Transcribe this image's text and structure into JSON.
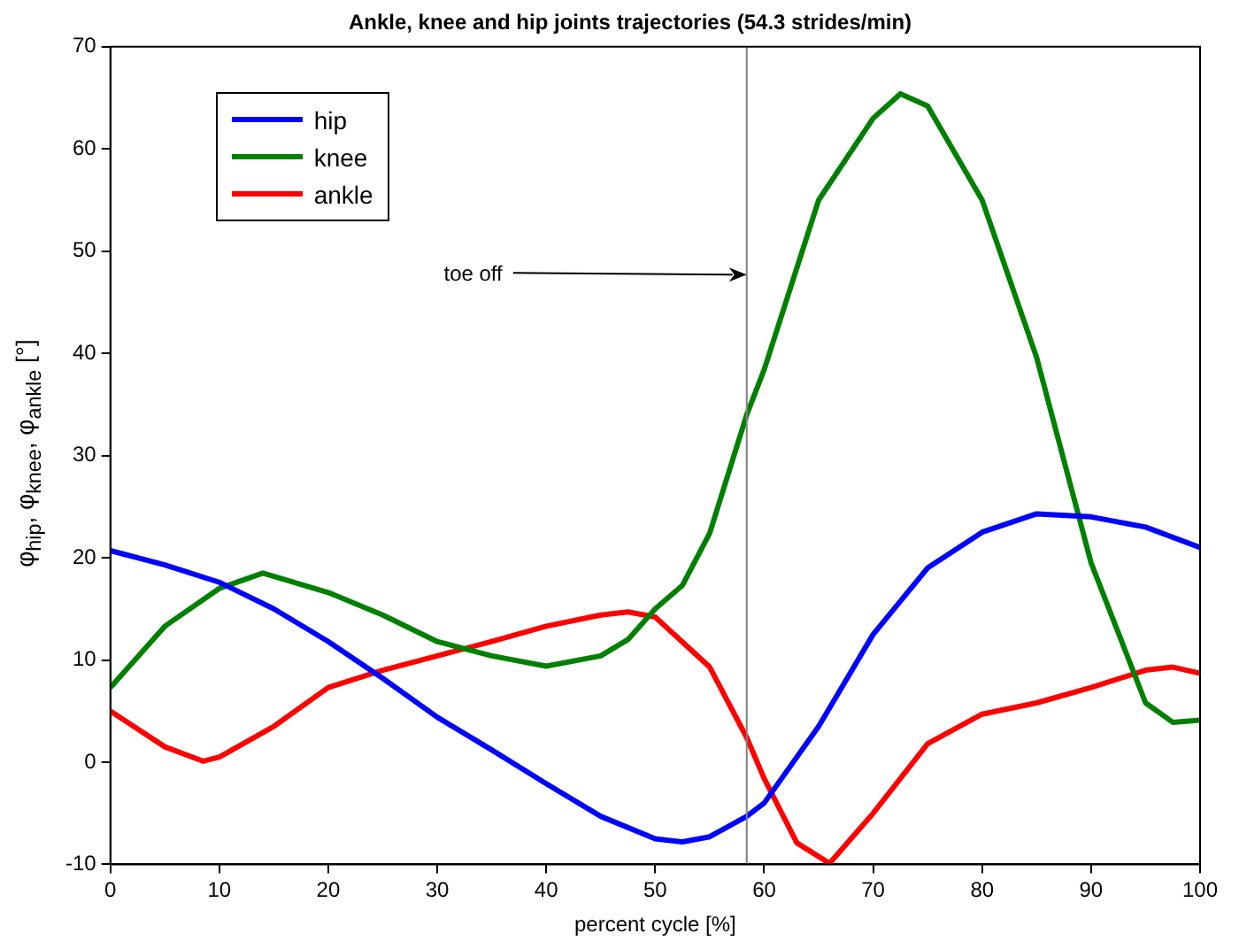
{
  "chart_data": {
    "type": "line",
    "title": "Ankle, knee and hip joints trajectories (54.3 strides/min)",
    "xlabel": "percent cycle [%]",
    "ylabel": "φ$_{hip}$, φ$_{knee}$, φ$_{ankle}$  [°]",
    "xlim": [
      0,
      100
    ],
    "xticks": [
      0,
      10,
      20,
      30,
      40,
      50,
      60,
      70,
      80,
      90,
      100
    ],
    "ylim": [
      -10,
      70
    ],
    "yticks": [
      -10,
      0,
      10,
      20,
      30,
      40,
      50,
      60,
      70
    ],
    "grid": false,
    "legend": "top left",
    "series": [
      {
        "name": "hip",
        "color": "#0000ff",
        "x": [
          0,
          5,
          10,
          15,
          20,
          25,
          30,
          35,
          40,
          45,
          50,
          52.5,
          55,
          58.4,
          60,
          65,
          70,
          75,
          80,
          85,
          90,
          95,
          100
        ],
        "values": [
          20.7,
          19.3,
          17.6,
          15,
          11.8,
          8.2,
          4.4,
          1.2,
          -2.1,
          -5.3,
          -7.5,
          -7.8,
          -7.3,
          -5.3,
          -4,
          3.5,
          12.5,
          19,
          22.5,
          24.3,
          24,
          23,
          21
        ]
      },
      {
        "name": "knee",
        "color": "#008000",
        "x": [
          0,
          5,
          10,
          14,
          20,
          25,
          30,
          35,
          40,
          45,
          47.5,
          50,
          52.5,
          55,
          58.4,
          60,
          65,
          70,
          72.5,
          75,
          80,
          85,
          90,
          95,
          97.5,
          100
        ],
        "values": [
          7.3,
          13.3,
          17,
          18.5,
          16.6,
          14.4,
          11.8,
          10.4,
          9.4,
          10.4,
          12,
          15,
          17.3,
          22.4,
          34,
          38.4,
          55,
          63,
          65.4,
          64.2,
          55,
          39.6,
          19.5,
          5.8,
          3.9,
          4.1
        ]
      },
      {
        "name": "ankle",
        "color": "#ff0000",
        "x": [
          0,
          5,
          8.5,
          10,
          15,
          20,
          25,
          30,
          35,
          40,
          45,
          47.5,
          50,
          55,
          58.4,
          60,
          63,
          66,
          70,
          75,
          80,
          85,
          90,
          95,
          97.5,
          100
        ],
        "values": [
          5,
          1.5,
          0.1,
          0.5,
          3.5,
          7.3,
          9,
          10.4,
          11.8,
          13.3,
          14.4,
          14.7,
          14.2,
          9.3,
          2.4,
          -1.6,
          -7.9,
          -9.9,
          -5,
          1.8,
          4.7,
          5.8,
          7.3,
          9,
          9.3,
          8.7
        ]
      }
    ],
    "ref_lines": [
      {
        "axis": "x",
        "value": 58.4,
        "color": "#808080"
      }
    ],
    "annotations": [
      {
        "text": "toe off",
        "x": 58.4,
        "y": 47.7
      }
    ]
  }
}
